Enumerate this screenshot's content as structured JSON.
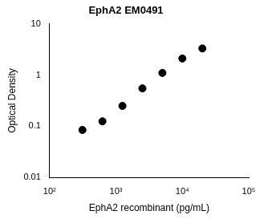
{
  "chart_data": {
    "type": "scatter",
    "title": "EphA2 EM0491",
    "x_label": "EphA2 recombinant (pg/mL)",
    "y_label": "Optical Density",
    "x": [
      312.5,
      625,
      1250,
      2500,
      5000,
      10000,
      20000
    ],
    "values": [
      0.085,
      0.125,
      0.25,
      0.55,
      1.1,
      2.1,
      3.3
    ],
    "color": "#000000",
    "marker": "circle",
    "log": true,
    "grid": false,
    "xlim": [
      100,
      100000
    ],
    "xticks": [
      {
        "value": 100,
        "label": "10²"
      },
      {
        "value": 1000,
        "label": "10³"
      },
      {
        "value": 10000,
        "label": "10⁴"
      },
      {
        "value": 100000,
        "label": "10⁵"
      }
    ],
    "ylim": [
      0.01,
      10
    ],
    "yticks": [
      0.01,
      0.1,
      1,
      10
    ]
  }
}
